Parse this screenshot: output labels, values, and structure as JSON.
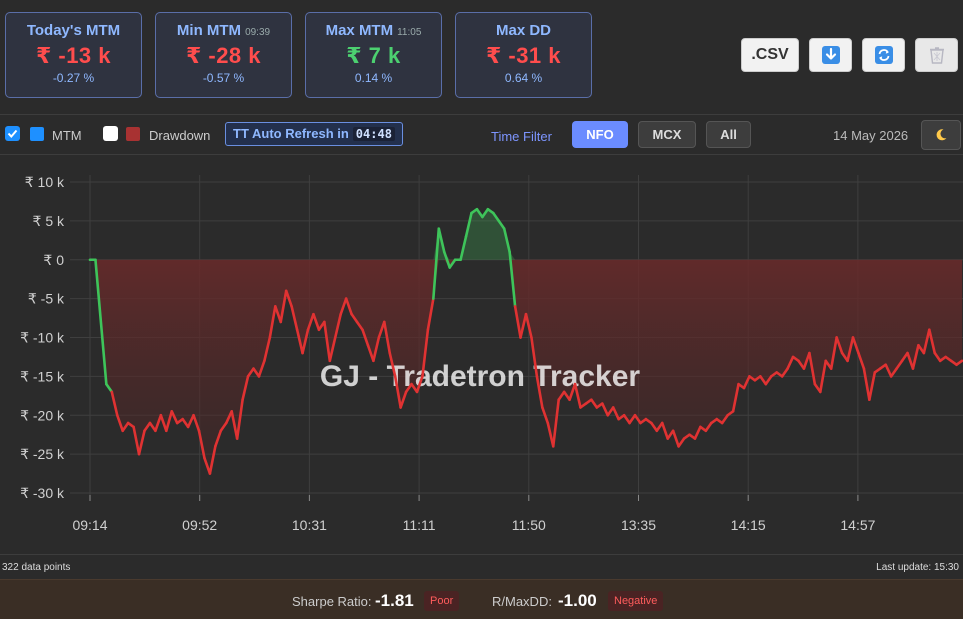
{
  "cards": [
    {
      "title": "Today's MTM",
      "time": "",
      "value": "₹ -13 k",
      "pct": "-0.27 %",
      "tone": "neg"
    },
    {
      "title": "Min MTM",
      "time": "09:39",
      "value": "₹ -28 k",
      "pct": "-0.57 %",
      "tone": "neg"
    },
    {
      "title": "Max MTM",
      "time": "11:05",
      "value": "₹ 7 k",
      "pct": "0.14 %",
      "tone": "pos"
    },
    {
      "title": "Max DD",
      "time": "",
      "value": "₹ -31 k",
      "pct": "0.64 %",
      "tone": "neg"
    }
  ],
  "toolbar": {
    "csv_label": ".CSV",
    "icons": [
      "download-icon",
      "refresh-icon",
      "trash-icon"
    ]
  },
  "controls": {
    "mtm_label": "MTM",
    "mtm_checked": true,
    "mtm_color": "#1e90ff",
    "drawdown_label": "Drawdown",
    "drawdown_checked": false,
    "drawdown_color": "#a83232",
    "auto_refresh_label": "TT Auto Refresh in",
    "countdown": "04:48",
    "time_filter_label": "Time Filter",
    "filters": [
      "NFO",
      "MCX",
      "All"
    ],
    "active_filter": "NFO",
    "date": "14 May 2026",
    "theme_icon": "moon-icon"
  },
  "chart_data": {
    "type": "line",
    "title": "",
    "watermark": "GJ - Tradetron Tracker",
    "xlabel": "",
    "ylabel": "",
    "x_ticks": [
      "09:14",
      "09:52",
      "10:31",
      "11:11",
      "11:50",
      "13:35",
      "14:15",
      "14:57"
    ],
    "y_ticks": [
      "₹ 10 k",
      "₹ 5 k",
      "₹ 0",
      "₹ -5 k",
      "₹ -10 k",
      "₹ -15 k",
      "₹ -20 k",
      "₹ -25 k",
      "₹ -30 k"
    ],
    "ylim": [
      -30,
      10
    ],
    "unit": "₹ k",
    "grid": true,
    "positive_color": "#3ec45a",
    "negative_color": "#e03232",
    "series": [
      {
        "points": [
          [
            0,
            0
          ],
          [
            1,
            0
          ],
          [
            3,
            -16
          ],
          [
            4,
            -17
          ],
          [
            5,
            -20
          ],
          [
            6,
            -22
          ],
          [
            7,
            -21
          ],
          [
            8,
            -21.5
          ],
          [
            9,
            -25
          ],
          [
            10,
            -22
          ],
          [
            11,
            -21
          ],
          [
            12,
            -22
          ],
          [
            13,
            -20
          ],
          [
            14,
            -22
          ],
          [
            15,
            -19.5
          ],
          [
            16,
            -21
          ],
          [
            17,
            -20.5
          ],
          [
            18,
            -21.5
          ],
          [
            19,
            -20
          ],
          [
            20,
            -22
          ],
          [
            21,
            -25.5
          ],
          [
            22,
            -27.5
          ],
          [
            23,
            -24
          ],
          [
            24,
            -22
          ],
          [
            25,
            -21
          ],
          [
            26,
            -19.5
          ],
          [
            27,
            -23
          ],
          [
            28,
            -18
          ],
          [
            29,
            -15
          ],
          [
            30,
            -14
          ],
          [
            31,
            -15
          ],
          [
            32,
            -13
          ],
          [
            33,
            -10
          ],
          [
            34,
            -6
          ],
          [
            35,
            -8
          ],
          [
            36,
            -4
          ],
          [
            37,
            -6
          ],
          [
            38,
            -9
          ],
          [
            39,
            -12
          ],
          [
            40,
            -9
          ],
          [
            41,
            -7
          ],
          [
            42,
            -9
          ],
          [
            43,
            -8
          ],
          [
            44,
            -13
          ],
          [
            45,
            -10
          ],
          [
            46,
            -7
          ],
          [
            47,
            -5
          ],
          [
            48,
            -7
          ],
          [
            49,
            -8
          ],
          [
            50,
            -9
          ],
          [
            51,
            -11
          ],
          [
            52,
            -13
          ],
          [
            53,
            -10
          ],
          [
            54,
            -8
          ],
          [
            55,
            -12
          ],
          [
            56,
            -15
          ],
          [
            57,
            -19
          ],
          [
            58,
            -17
          ],
          [
            59,
            -16
          ],
          [
            60,
            -17
          ],
          [
            61,
            -15
          ],
          [
            62,
            -9
          ],
          [
            63,
            -5
          ],
          [
            64,
            4
          ],
          [
            65,
            1
          ],
          [
            66,
            -1
          ],
          [
            67,
            0
          ],
          [
            68,
            0
          ],
          [
            69,
            3
          ],
          [
            70,
            6
          ],
          [
            71,
            6.5
          ],
          [
            72,
            5.5
          ],
          [
            73,
            6.5
          ],
          [
            74,
            6
          ],
          [
            75,
            5
          ],
          [
            76,
            4
          ],
          [
            77,
            1
          ],
          [
            78,
            -6
          ],
          [
            79,
            -10
          ],
          [
            80,
            -7
          ],
          [
            81,
            -10
          ],
          [
            82,
            -15
          ],
          [
            83,
            -19
          ],
          [
            84,
            -21
          ],
          [
            85,
            -24
          ],
          [
            86,
            -18
          ],
          [
            87,
            -17
          ],
          [
            88,
            -18
          ],
          [
            89,
            -16
          ],
          [
            90,
            -19
          ],
          [
            91,
            -18.5
          ],
          [
            92,
            -18
          ],
          [
            93,
            -19
          ],
          [
            94,
            -18.5
          ],
          [
            95,
            -20
          ],
          [
            96,
            -19
          ],
          [
            97,
            -20.5
          ],
          [
            98,
            -20
          ],
          [
            99,
            -21
          ],
          [
            100,
            -20
          ],
          [
            101,
            -21
          ],
          [
            102,
            -20.5
          ],
          [
            103,
            -21
          ],
          [
            104,
            -22
          ],
          [
            105,
            -21
          ],
          [
            106,
            -23
          ],
          [
            107,
            -22
          ],
          [
            108,
            -24
          ],
          [
            109,
            -23
          ],
          [
            110,
            -22.5
          ],
          [
            111,
            -23
          ],
          [
            112,
            -21.5
          ],
          [
            113,
            -22
          ],
          [
            114,
            -21
          ],
          [
            115,
            -20.5
          ],
          [
            116,
            -21
          ],
          [
            117,
            -20
          ],
          [
            118,
            -19.5
          ],
          [
            119,
            -16
          ],
          [
            120,
            -16.5
          ],
          [
            121,
            -15
          ],
          [
            122,
            -15.5
          ],
          [
            123,
            -15
          ],
          [
            124,
            -16
          ],
          [
            125,
            -15
          ],
          [
            126,
            -14.5
          ],
          [
            127,
            -15
          ],
          [
            128,
            -14
          ],
          [
            129,
            -12.5
          ],
          [
            130,
            -13
          ],
          [
            131,
            -14
          ],
          [
            132,
            -12
          ],
          [
            133,
            -16
          ],
          [
            134,
            -17
          ],
          [
            135,
            -13
          ],
          [
            136,
            -14
          ],
          [
            137,
            -10
          ],
          [
            138,
            -12
          ],
          [
            139,
            -13
          ],
          [
            140,
            -10
          ],
          [
            141,
            -12
          ],
          [
            142,
            -14
          ],
          [
            143,
            -18
          ],
          [
            144,
            -14.5
          ],
          [
            145,
            -14
          ],
          [
            146,
            -13.5
          ],
          [
            147,
            -15
          ],
          [
            148,
            -14
          ],
          [
            149,
            -13
          ],
          [
            150,
            -12
          ],
          [
            151,
            -14
          ],
          [
            152,
            -11
          ],
          [
            153,
            -12
          ],
          [
            154,
            -9
          ],
          [
            155,
            -12
          ],
          [
            156,
            -13
          ],
          [
            157,
            -12.5
          ],
          [
            158,
            -13
          ],
          [
            159,
            -13.5
          ],
          [
            160,
            -13
          ]
        ]
      }
    ]
  },
  "footer": {
    "data_points": "322 data points",
    "last_update": "Last update: 15:30",
    "sharpe_label": "Sharpe Ratio:",
    "sharpe_value": "-1.81",
    "sharpe_badge": "Poor",
    "rmaxdd_label": "R/MaxDD:",
    "rmaxdd_value": "-1.00",
    "rmaxdd_badge": "Negative"
  }
}
